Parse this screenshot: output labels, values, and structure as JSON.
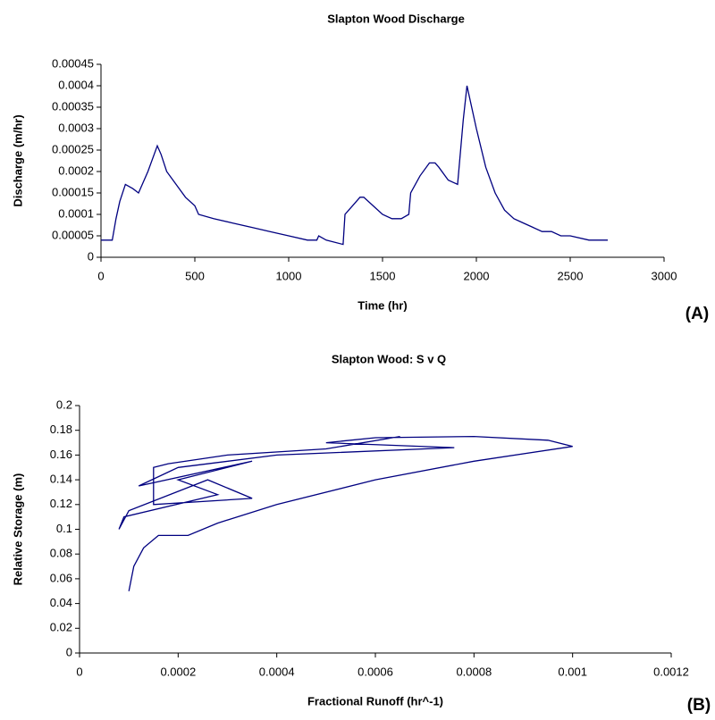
{
  "chart_data": [
    {
      "type": "line",
      "title": "Slapton Wood Discharge",
      "xlabel": "Time (hr)",
      "ylabel": "Discharge (m/hr)",
      "panel_label": "(A)",
      "xlim": [
        0,
        3000
      ],
      "xticks": [
        0,
        500,
        1000,
        1500,
        2000,
        2500,
        3000
      ],
      "ylim": [
        0,
        0.00045
      ],
      "yticks": [
        0,
        5e-05,
        0.0001,
        0.00015,
        0.0002,
        0.00025,
        0.0003,
        0.00035,
        0.0004,
        0.00045
      ],
      "grid": false,
      "color": "#000080",
      "x": [
        0,
        60,
        80,
        100,
        130,
        170,
        200,
        250,
        300,
        320,
        350,
        400,
        450,
        500,
        520,
        600,
        700,
        800,
        900,
        1000,
        1100,
        1150,
        1160,
        1200,
        1290,
        1300,
        1320,
        1340,
        1380,
        1400,
        1450,
        1500,
        1550,
        1600,
        1640,
        1650,
        1700,
        1750,
        1780,
        1800,
        1850,
        1900,
        1930,
        1950,
        1960,
        2000,
        2050,
        2100,
        2150,
        2200,
        2250,
        2300,
        2350,
        2400,
        2450,
        2500,
        2600,
        2700
      ],
      "values": [
        4e-05,
        4e-05,
        9e-05,
        0.00013,
        0.00017,
        0.00016,
        0.00015,
        0.0002,
        0.00026,
        0.00024,
        0.0002,
        0.00017,
        0.00014,
        0.00012,
        0.0001,
        9e-05,
        8e-05,
        7e-05,
        6e-05,
        5e-05,
        4e-05,
        4e-05,
        5e-05,
        4e-05,
        3e-05,
        0.0001,
        0.00011,
        0.00012,
        0.00014,
        0.00014,
        0.00012,
        0.0001,
        9e-05,
        9e-05,
        0.0001,
        0.00015,
        0.00019,
        0.00022,
        0.00022,
        0.00021,
        0.00018,
        0.00017,
        0.00032,
        0.0004,
        0.00038,
        0.0003,
        0.00021,
        0.00015,
        0.00011,
        9e-05,
        8e-05,
        7e-05,
        6e-05,
        6e-05,
        5e-05,
        5e-05,
        4e-05,
        4e-05
      ]
    },
    {
      "type": "line",
      "title": "Slapton Wood: S v Q",
      "xlabel": "Fractional Runoff (hr^-1)",
      "ylabel": "Relative Storage (m)",
      "panel_label": "(B)",
      "xlim": [
        0,
        0.0012
      ],
      "xticks": [
        0,
        0.0002,
        0.0004,
        0.0006,
        0.0008,
        0.001,
        0.0012
      ],
      "ylim": [
        0,
        0.2
      ],
      "yticks": [
        0,
        0.02,
        0.04,
        0.06,
        0.08,
        0.1,
        0.12,
        0.14,
        0.16,
        0.18,
        0.2
      ],
      "grid": false,
      "color": "#000080",
      "x": [
        0.0001,
        0.00011,
        0.00013,
        0.00016,
        0.00022,
        0.00028,
        0.0004,
        0.0006,
        0.0008,
        0.001,
        0.00095,
        0.0008,
        0.0006,
        0.0005,
        0.00076,
        0.0004,
        0.0002,
        0.00012,
        0.00035,
        0.0002,
        0.00028,
        9e-05,
        8e-05,
        0.0001,
        0.00026,
        0.00035,
        0.00015,
        0.00015,
        0.00018,
        0.0003,
        0.0005,
        0.00065
      ],
      "values": [
        0.05,
        0.07,
        0.085,
        0.095,
        0.095,
        0.105,
        0.12,
        0.14,
        0.155,
        0.167,
        0.172,
        0.175,
        0.174,
        0.17,
        0.166,
        0.16,
        0.15,
        0.135,
        0.155,
        0.14,
        0.128,
        0.11,
        0.1,
        0.115,
        0.14,
        0.125,
        0.12,
        0.15,
        0.153,
        0.16,
        0.165,
        0.175
      ]
    }
  ]
}
